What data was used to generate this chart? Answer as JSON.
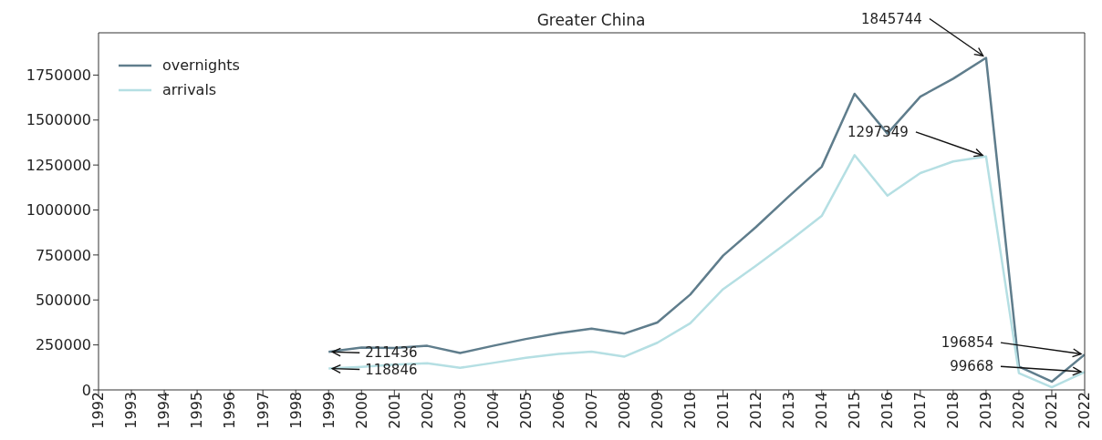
{
  "chart_data": {
    "type": "line",
    "title": "Greater China",
    "x": [
      1999,
      2000,
      2001,
      2002,
      2003,
      2004,
      2005,
      2006,
      2007,
      2008,
      2009,
      2010,
      2011,
      2012,
      2013,
      2014,
      2015,
      2016,
      2017,
      2018,
      2019,
      2020,
      2021,
      2022
    ],
    "series": [
      {
        "name": "overnights",
        "color": "#5f7d8c",
        "values": [
          211436,
          236000,
          233000,
          245000,
          205000,
          245000,
          283000,
          315000,
          340000,
          313000,
          375000,
          530000,
          746000,
          905000,
          1075000,
          1240000,
          1646000,
          1425000,
          1630000,
          1730000,
          1845744,
          130000,
          46000,
          196854
        ]
      },
      {
        "name": "arrivals",
        "color": "#b5dfe3",
        "values": [
          118846,
          128000,
          140000,
          148000,
          123000,
          150000,
          178000,
          200000,
          213000,
          185000,
          262000,
          370000,
          560000,
          690000,
          825000,
          967000,
          1305000,
          1080000,
          1205000,
          1270000,
          1297349,
          93000,
          15000,
          99668
        ]
      }
    ],
    "xlim": [
      1992,
      2022
    ],
    "xticks": [
      1992,
      1993,
      1994,
      1995,
      1996,
      1997,
      1998,
      1999,
      2000,
      2001,
      2002,
      2003,
      2004,
      2005,
      2006,
      2007,
      2008,
      2009,
      2010,
      2011,
      2012,
      2013,
      2014,
      2015,
      2016,
      2017,
      2018,
      2019,
      2020,
      2021,
      2022
    ],
    "ylim": [
      0,
      1985000
    ],
    "yticks": [
      0,
      250000,
      500000,
      750000,
      1000000,
      1250000,
      1500000,
      1750000
    ],
    "legend": "top left",
    "marker": "none",
    "line_style": "solid",
    "annotations": [
      {
        "text": "1845744",
        "x": 2019,
        "y": 1845744
      },
      {
        "text": "1297349",
        "x": 2019,
        "y": 1297349
      },
      {
        "text": "211436",
        "x": 1999,
        "y": 211436
      },
      {
        "text": "118846",
        "x": 1999,
        "y": 118846
      },
      {
        "text": "196854",
        "x": 2022,
        "y": 196854
      },
      {
        "text": "99668",
        "x": 2022,
        "y": 99668
      }
    ]
  }
}
